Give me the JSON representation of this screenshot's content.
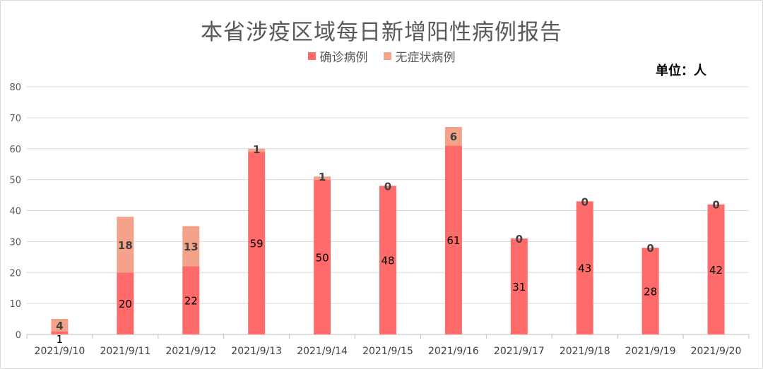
{
  "chart_data": {
    "type": "bar",
    "stacked": true,
    "title": "本省涉疫区域每日新增阳性病例报告",
    "unit_label": "单位：人",
    "legend_position": "top",
    "ylim": [
      0,
      80
    ],
    "yticks": [
      0,
      10,
      20,
      30,
      40,
      50,
      60,
      70,
      80
    ],
    "grid": true,
    "categories": [
      "2021/9/10",
      "2021/9/11",
      "2021/9/12",
      "2021/9/13",
      "2021/9/14",
      "2021/9/15",
      "2021/9/16",
      "2021/9/17",
      "2021/9/18",
      "2021/9/19",
      "2021/9/20"
    ],
    "series": [
      {
        "name": "确诊病例",
        "color": "#ff6b6b",
        "values": [
          1,
          20,
          22,
          59,
          50,
          48,
          61,
          31,
          43,
          28,
          42
        ]
      },
      {
        "name": "无症状病例",
        "color": "#f4a38a",
        "values": [
          4,
          18,
          13,
          1,
          1,
          0,
          6,
          0,
          0,
          0,
          0
        ]
      }
    ]
  }
}
